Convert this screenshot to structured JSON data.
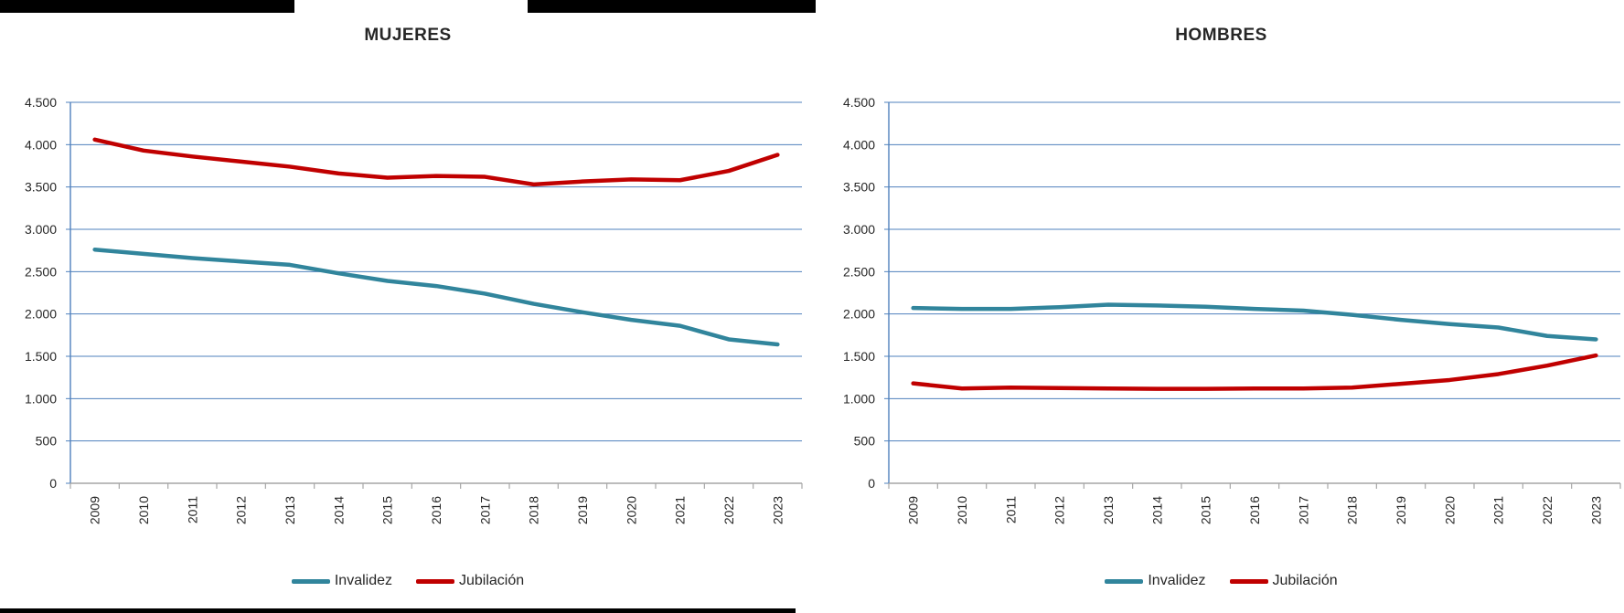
{
  "decorations": {
    "top_bar_color": "#000000",
    "bottom_bar_color": "#000000"
  },
  "colors": {
    "invalidez": "#31859C",
    "jubilacion": "#C00000",
    "gridline": "#4F81BD",
    "y_axis": "#4F81BD",
    "x_axis": "#A6A6A6",
    "tick": "#A6A6A6",
    "label_text": "#262626",
    "title_text": "#262626"
  },
  "chart_data": [
    {
      "type": "line",
      "title": "MUJERES",
      "x": [
        2009,
        2010,
        2011,
        2012,
        2013,
        2014,
        2015,
        2016,
        2017,
        2018,
        2019,
        2020,
        2021,
        2022,
        2023
      ],
      "series": [
        {
          "name": "Invalidez",
          "color": "#31859C",
          "values": [
            2760,
            2710,
            2660,
            2620,
            2580,
            2480,
            2390,
            2330,
            2240,
            2120,
            2020,
            1930,
            1860,
            1700,
            1640
          ]
        },
        {
          "name": "Jubilación",
          "color": "#C00000",
          "values": [
            4060,
            3930,
            3860,
            3800,
            3740,
            3660,
            3610,
            3630,
            3620,
            3530,
            3565,
            3590,
            3580,
            3690,
            3880
          ]
        }
      ],
      "ylim": [
        0,
        4500
      ],
      "ytick_step": 500,
      "ytick_labels": [
        "0",
        "500",
        "1.000",
        "1.500",
        "2.000",
        "2.500",
        "3.000",
        "3.500",
        "4.000",
        "4.500"
      ],
      "grid": true,
      "legend_position": "bottom",
      "legend": [
        "Invalidez",
        "Jubilación"
      ]
    },
    {
      "type": "line",
      "title": "HOMBRES",
      "x": [
        2009,
        2010,
        2011,
        2012,
        2013,
        2014,
        2015,
        2016,
        2017,
        2018,
        2019,
        2020,
        2021,
        2022,
        2023
      ],
      "series": [
        {
          "name": "Invalidez",
          "color": "#31859C",
          "values": [
            2070,
            2060,
            2060,
            2080,
            2110,
            2100,
            2085,
            2060,
            2040,
            1990,
            1930,
            1880,
            1840,
            1740,
            1700
          ]
        },
        {
          "name": "Jubilación",
          "color": "#C00000",
          "values": [
            1180,
            1120,
            1130,
            1125,
            1120,
            1115,
            1115,
            1120,
            1120,
            1130,
            1175,
            1220,
            1290,
            1390,
            1510
          ]
        }
      ],
      "ylim": [
        0,
        4500
      ],
      "ytick_step": 500,
      "ytick_labels": [
        "0",
        "500",
        "1.000",
        "1.500",
        "2.000",
        "2.500",
        "3.000",
        "3.500",
        "4.000",
        "4.500"
      ],
      "grid": true,
      "legend_position": "bottom",
      "legend": [
        "Invalidez",
        "Jubilación"
      ]
    }
  ]
}
